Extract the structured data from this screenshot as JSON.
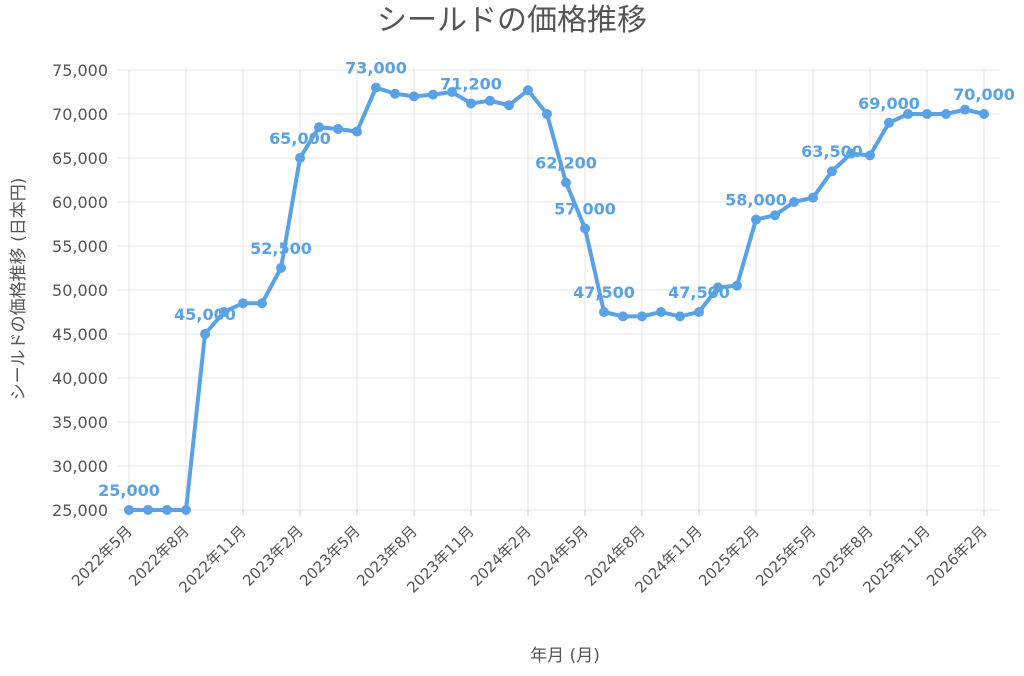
{
  "chart_data": {
    "type": "line",
    "title": "シールドの価格推移",
    "xlabel": "年月 (月)",
    "ylabel": "シールドの価格推移 (日本円)",
    "ylim": [
      25000,
      75000
    ],
    "yticks": [
      "25,000",
      "30,000",
      "35,000",
      "40,000",
      "45,000",
      "50,000",
      "55,000",
      "60,000",
      "65,000",
      "70,000",
      "75,000"
    ],
    "x_tick_labels": [
      {
        "index": 0,
        "label": "2022年5月"
      },
      {
        "index": 3,
        "label": "2022年8月"
      },
      {
        "index": 6,
        "label": "2022年11月"
      },
      {
        "index": 9,
        "label": "2023年2月"
      },
      {
        "index": 12,
        "label": "2023年5月"
      },
      {
        "index": 15,
        "label": "2023年8月"
      },
      {
        "index": 18,
        "label": "2023年11月"
      },
      {
        "index": 21,
        "label": "2024年2月"
      },
      {
        "index": 24,
        "label": "2024年5月"
      },
      {
        "index": 27,
        "label": "2024年8月"
      },
      {
        "index": 30,
        "label": "2024年11月"
      },
      {
        "index": 33,
        "label": "2025年2月"
      },
      {
        "index": 36,
        "label": "2025年5月"
      },
      {
        "index": 39,
        "label": "2025年8月"
      },
      {
        "index": 42,
        "label": "2025年11月"
      },
      {
        "index": 45,
        "label": "2026年2月"
      }
    ],
    "series": [
      {
        "color": "#5aa2e6",
        "values": [
          25000,
          25000,
          25000,
          25000,
          45000,
          47500,
          48500,
          48500,
          52500,
          65000,
          68500,
          68300,
          68000,
          73000,
          72300,
          72000,
          72200,
          72500,
          71200,
          71500,
          71000,
          72700,
          70000,
          62200,
          57000,
          47500,
          47000,
          47000,
          47500,
          47000,
          47500,
          50300,
          50500,
          58000,
          58500,
          60000,
          60500,
          63500,
          65500,
          65300,
          69000,
          70000,
          70000,
          70000,
          70500,
          70000
        ]
      }
    ],
    "data_labels": [
      {
        "index": 0,
        "text": "25,000"
      },
      {
        "index": 4,
        "text": "45,000"
      },
      {
        "index": 8,
        "text": "52,500"
      },
      {
        "index": 9,
        "text": "65,000"
      },
      {
        "index": 13,
        "text": "73,000"
      },
      {
        "index": 18,
        "text": "71,200"
      },
      {
        "index": 23,
        "text": "62,200"
      },
      {
        "index": 24,
        "text": "57,000"
      },
      {
        "index": 25,
        "text": "47,500"
      },
      {
        "index": 30,
        "text": "47,500"
      },
      {
        "index": 33,
        "text": "58,000"
      },
      {
        "index": 37,
        "text": "63,500"
      },
      {
        "index": 40,
        "text": "69,000"
      },
      {
        "index": 45,
        "text": "70,000"
      }
    ],
    "grid": true
  }
}
